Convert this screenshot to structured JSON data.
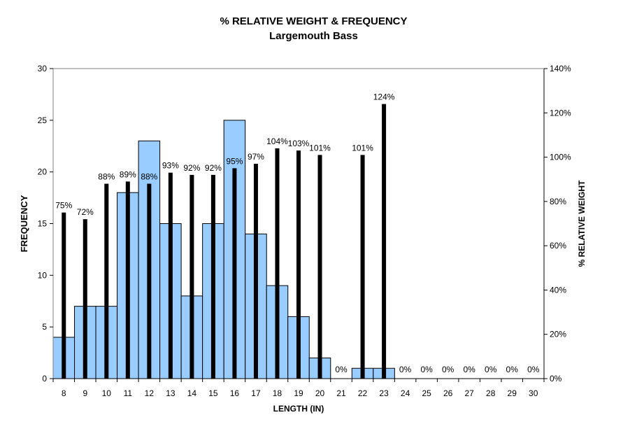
{
  "chart_data": {
    "type": "bar",
    "title": "% RELATIVE WEIGHT & FREQUENCY",
    "subtitle": "Largemouth Bass",
    "xlabel": "LENGTH (IN)",
    "ylabel": "FREQUENCY",
    "y2label": "% RELATIVE WEIGHT",
    "categories": [
      "8",
      "9",
      "10",
      "11",
      "12",
      "13",
      "14",
      "15",
      "16",
      "17",
      "18",
      "19",
      "20",
      "21",
      "22",
      "23",
      "24",
      "25",
      "26",
      "27",
      "28",
      "29",
      "30"
    ],
    "ylim": [
      0,
      30
    ],
    "yticks": [
      "0",
      "5",
      "10",
      "15",
      "20",
      "25",
      "30"
    ],
    "y2lim": [
      0,
      140
    ],
    "y2ticks": [
      "0%",
      "20%",
      "40%",
      "60%",
      "80%",
      "100%",
      "120%",
      "140%"
    ],
    "grid": false,
    "legend": "none",
    "series": [
      {
        "type": "bar",
        "axis": "left",
        "color": "#99ccff",
        "values": [
          4,
          7,
          7,
          18,
          23,
          15,
          8,
          15,
          25,
          14,
          9,
          6,
          2,
          0,
          1,
          1,
          0,
          0,
          0,
          0,
          0,
          0,
          0
        ]
      },
      {
        "type": "bar",
        "axis": "right",
        "color": "#000000",
        "values": [
          75,
          72,
          88,
          89,
          88,
          93,
          92,
          92,
          95,
          97,
          104,
          103,
          101,
          0,
          101,
          124,
          0,
          0,
          0,
          0,
          0,
          0,
          0
        ],
        "data_labels": [
          "75%",
          "72%",
          "88%",
          "89%",
          "88%",
          "93%",
          "92%",
          "92%",
          "95%",
          "97%",
          "104%",
          "103%",
          "101%",
          "0%",
          "101%",
          "124%",
          "0%",
          "0%",
          "0%",
          "0%",
          "0%",
          "0%",
          "0%"
        ]
      }
    ]
  }
}
